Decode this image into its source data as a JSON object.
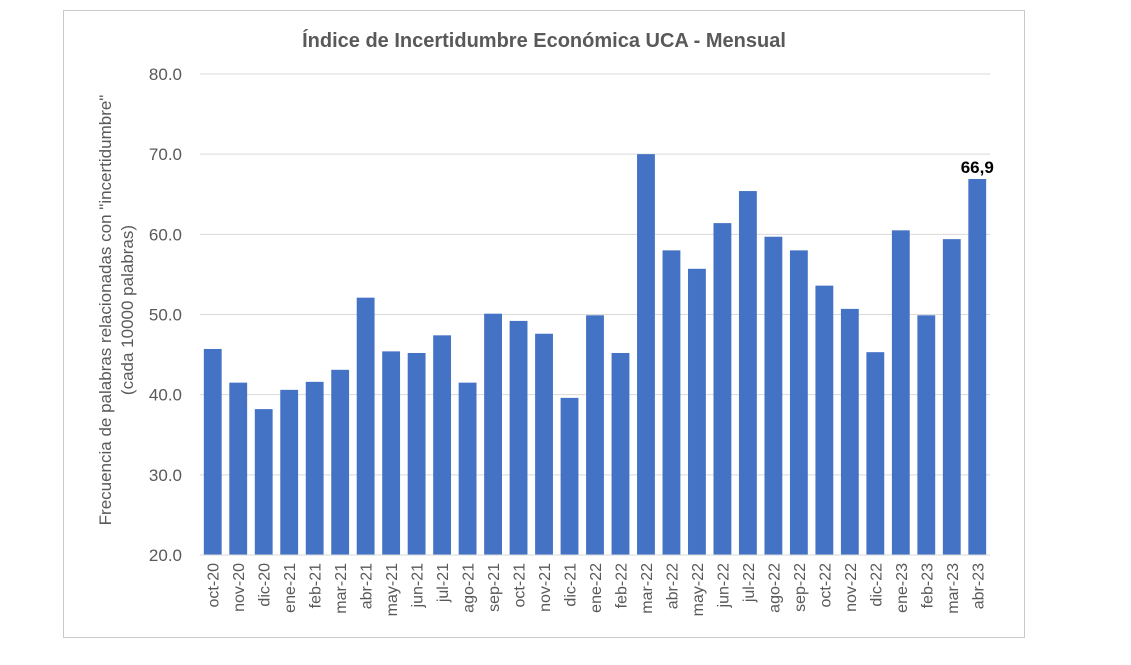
{
  "chart_data": {
    "type": "bar",
    "title": "Índice de Incertidumbre Económica UCA - Mensual",
    "xlabel": "",
    "ylabel": [
      "Frecuencia de palabras relacionadas con \"incertidumbre\"",
      "(cada 10000 palabras)"
    ],
    "ylim": [
      20,
      80
    ],
    "yticks": [
      "20.0",
      "30.0",
      "40.0",
      "50.0",
      "60.0",
      "70.0",
      "80.0"
    ],
    "grid": true,
    "color": "#4472C4",
    "categories": [
      "oct-20",
      "nov-20",
      "dic-20",
      "ene-21",
      "feb-21",
      "mar-21",
      "abr-21",
      "may-21",
      "jun-21",
      "jul-21",
      "ago-21",
      "sep-21",
      "oct-21",
      "nov-21",
      "dic-21",
      "ene-22",
      "feb-22",
      "mar-22",
      "abr-22",
      "may-22",
      "jun-22",
      "jul-22",
      "ago-22",
      "sep-22",
      "oct-22",
      "nov-22",
      "dic-22",
      "ene-23",
      "feb-23",
      "mar-23",
      "abr-23"
    ],
    "values": [
      45.7,
      41.5,
      38.2,
      40.6,
      41.6,
      43.1,
      52.1,
      45.4,
      45.2,
      47.4,
      41.5,
      50.1,
      49.2,
      47.6,
      39.6,
      49.9,
      45.2,
      70.0,
      58.0,
      55.7,
      61.4,
      65.4,
      59.7,
      58.0,
      53.6,
      50.7,
      45.3,
      60.5,
      49.9,
      59.4,
      66.9
    ],
    "annotation": {
      "index": 30,
      "text": "66,9"
    }
  }
}
